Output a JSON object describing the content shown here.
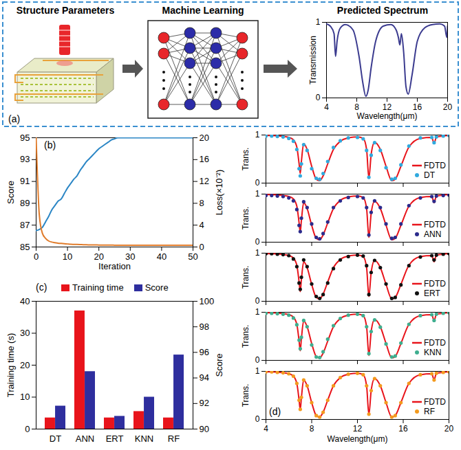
{
  "diagram": {
    "panel": "(a)",
    "steps": [
      "Structure Parameters",
      "Machine Learning"
    ]
  },
  "chart_data": [
    {
      "type": "line",
      "title": "Predicted Spectrum",
      "x_label": "Wavelength(μm)",
      "y_label": "Transmission",
      "x": [
        4,
        4.5,
        5,
        5.2,
        5.4,
        5.8,
        6.5,
        7.5,
        8.3,
        8.8,
        9.2,
        9.5,
        9.9,
        10.5,
        11.5,
        12.5,
        13.2,
        13.5,
        13.7,
        13.9,
        14.2,
        14.5,
        14.8,
        15.3,
        16,
        17,
        18,
        19,
        19.6,
        19.9,
        20
      ],
      "series": [
        {
          "color": "#3b3b8f",
          "values": [
            0.98,
            0.95,
            0.85,
            0.55,
            0.75,
            0.92,
            0.97,
            0.9,
            0.55,
            0.2,
            0.02,
            0.1,
            0.4,
            0.75,
            0.95,
            0.97,
            0.9,
            0.8,
            0.7,
            0.85,
            0.6,
            0.15,
            0.05,
            0.3,
            0.75,
            0.93,
            0.97,
            0.98,
            0.95,
            0.8,
            0.95
          ]
        }
      ],
      "xlim": [
        4,
        20
      ],
      "xticks": [
        4,
        8,
        12,
        16,
        20
      ],
      "ylim": [
        0,
        1
      ],
      "yticks": [
        0,
        1
      ]
    },
    {
      "type": "line",
      "panel": "(b)",
      "x_label": "Iteration",
      "y_label": "Score",
      "y2_label": "Loss(×10⁻²)",
      "x": [
        0,
        1,
        2,
        3,
        4,
        5,
        6,
        7,
        8,
        9,
        10,
        11,
        12,
        13,
        14,
        15,
        16,
        17,
        18,
        19,
        20,
        21,
        22,
        23,
        24,
        25,
        26,
        27,
        28,
        29,
        30,
        35,
        40,
        45,
        50
      ],
      "xlim": [
        0,
        50
      ],
      "xticks": [
        0,
        10,
        20,
        30,
        40,
        50
      ],
      "ylim": [
        85,
        95
      ],
      "yticks": [
        85,
        87,
        89,
        91,
        93,
        95
      ],
      "y2lim": [
        0,
        20
      ],
      "y2ticks": [
        0,
        4,
        8,
        12,
        16,
        20
      ],
      "series": [
        {
          "color": "#2b86c5",
          "values": [
            86.5,
            86.6,
            86.8,
            87.3,
            87.8,
            88.4,
            88.8,
            89.2,
            89.4,
            89.9,
            90.4,
            90.8,
            91.2,
            91.5,
            92.0,
            92.4,
            92.8,
            93.1,
            93.4,
            93.7,
            94.0,
            94.2,
            94.4,
            94.6,
            94.8,
            94.9,
            95,
            95,
            95,
            95,
            95,
            95,
            95,
            95,
            95
          ]
        },
        {
          "color": "#e07b2a",
          "axis": "y2",
          "values": [
            20,
            6,
            2.5,
            1.6,
            1.1,
            0.9,
            0.8,
            0.7,
            0.65,
            0.6,
            0.55,
            0.5,
            0.48,
            0.46,
            0.44,
            0.42,
            0.4,
            0.39,
            0.38,
            0.37,
            0.36,
            0.35,
            0.35,
            0.34,
            0.34,
            0.33,
            0.33,
            0.32,
            0.32,
            0.32,
            0.31,
            0.3,
            0.3,
            0.3,
            0.3
          ]
        }
      ]
    },
    {
      "type": "bar",
      "panel": "(c)",
      "categories": [
        "DT",
        "ANN",
        "ERT",
        "KNN",
        "RF"
      ],
      "y_label": "Training time (s)",
      "y2_label": "Score",
      "ylim": [
        0,
        40
      ],
      "yticks": [
        0,
        10,
        20,
        30,
        40
      ],
      "y2lim": [
        90,
        100
      ],
      "y2ticks": [
        90,
        92,
        94,
        96,
        98,
        100
      ],
      "legend": "top",
      "series": [
        {
          "name": "Training time",
          "color": "#e8141b",
          "values": [
            3.5,
            37,
            3.5,
            5.5,
            3.5
          ]
        },
        {
          "name": "Score",
          "color": "#2e2e9e",
          "axis": "y2",
          "values": [
            91.8,
            94.5,
            91,
            92.5,
            95.8
          ]
        }
      ]
    },
    {
      "type": "line",
      "y_label": "Trans.",
      "tick_labels": "y",
      "legend": "lower right",
      "x": [
        4,
        4.5,
        5,
        5.5,
        6,
        6.4,
        6.7,
        6.9,
        7.0,
        7.1,
        7.3,
        7.6,
        8.0,
        8.4,
        8.7,
        9.0,
        9.4,
        9.9,
        10.5,
        11.2,
        12.0,
        12.5,
        12.8,
        13.0,
        13.2,
        13.5,
        14.0,
        14.5,
        15.0,
        15.3,
        15.8,
        16.5,
        17.5,
        18.5,
        18.7,
        18.9,
        19.5,
        20
      ],
      "xlim": [
        4,
        20
      ],
      "xticks": [
        4,
        8,
        12,
        16,
        20
      ],
      "ylim": [
        0,
        1
      ],
      "yticks": [
        0,
        1
      ],
      "series": [
        {
          "name": "FDTD",
          "type": "line",
          "color": "#e8141b",
          "values": [
            0.99,
            0.99,
            0.98,
            0.97,
            0.95,
            0.9,
            0.75,
            0.4,
            0.2,
            0.45,
            0.82,
            0.7,
            0.35,
            0.08,
            0.05,
            0.15,
            0.4,
            0.7,
            0.87,
            0.94,
            0.96,
            0.93,
            0.7,
            0.1,
            0.6,
            0.85,
            0.7,
            0.35,
            0.05,
            0.08,
            0.35,
            0.75,
            0.93,
            0.95,
            0.82,
            0.96,
            0.98,
            0.99
          ]
        },
        {
          "name": "DT",
          "type": "scatter",
          "marker": "circle",
          "color": "#30a9de",
          "values": [
            0.98,
            0.98,
            0.97,
            0.96,
            0.93,
            0.87,
            0.7,
            0.3,
            0.15,
            0.4,
            0.8,
            0.68,
            0.3,
            0.1,
            0.08,
            0.2,
            0.45,
            0.74,
            0.88,
            0.94,
            0.95,
            0.92,
            0.68,
            0.12,
            0.58,
            0.84,
            0.68,
            0.32,
            0.08,
            0.1,
            0.38,
            0.77,
            0.94,
            0.95,
            0.84,
            0.96,
            0.98,
            0.99
          ]
        }
      ]
    },
    {
      "type": "line",
      "y_label": "Trans.",
      "tick_labels": "y",
      "legend": "lower right",
      "x": [
        4,
        4.5,
        5,
        5.5,
        6,
        6.4,
        6.7,
        6.9,
        7.0,
        7.1,
        7.3,
        7.6,
        8.0,
        8.4,
        8.7,
        9.0,
        9.4,
        9.9,
        10.5,
        11.2,
        12.0,
        12.5,
        12.8,
        13.0,
        13.2,
        13.5,
        14.0,
        14.5,
        15.0,
        15.3,
        15.8,
        16.5,
        17.5,
        18.5,
        18.7,
        18.9,
        19.5,
        20
      ],
      "xlim": [
        4,
        20
      ],
      "xticks": [
        4,
        8,
        12,
        16,
        20
      ],
      "ylim": [
        0,
        1
      ],
      "yticks": [
        0,
        1
      ],
      "series": [
        {
          "name": "FDTD",
          "type": "line",
          "color": "#e8141b",
          "values": [
            0.99,
            0.99,
            0.98,
            0.97,
            0.95,
            0.9,
            0.75,
            0.4,
            0.2,
            0.45,
            0.82,
            0.7,
            0.35,
            0.08,
            0.05,
            0.15,
            0.4,
            0.7,
            0.87,
            0.94,
            0.96,
            0.93,
            0.7,
            0.1,
            0.6,
            0.85,
            0.7,
            0.35,
            0.05,
            0.08,
            0.35,
            0.75,
            0.93,
            0.95,
            0.82,
            0.96,
            0.98,
            0.99
          ]
        },
        {
          "name": "ANN",
          "type": "scatter",
          "marker": "circle",
          "color": "#2b2b8c",
          "values": [
            0.97,
            0.97,
            0.96,
            0.95,
            0.92,
            0.86,
            0.68,
            0.35,
            0.22,
            0.5,
            0.84,
            0.72,
            0.38,
            0.1,
            0.07,
            0.18,
            0.42,
            0.72,
            0.86,
            0.93,
            0.95,
            0.92,
            0.72,
            0.15,
            0.62,
            0.86,
            0.72,
            0.38,
            0.08,
            0.1,
            0.38,
            0.76,
            0.92,
            0.95,
            0.85,
            0.96,
            0.97,
            0.98
          ]
        }
      ]
    },
    {
      "type": "line",
      "y_label": "Trans.",
      "tick_labels": "y",
      "legend": "lower right",
      "x": [
        4,
        4.5,
        5,
        5.5,
        6,
        6.4,
        6.7,
        6.9,
        7.0,
        7.1,
        7.3,
        7.6,
        8.0,
        8.4,
        8.7,
        9.0,
        9.4,
        9.9,
        10.5,
        11.2,
        12.0,
        12.5,
        12.8,
        13.0,
        13.2,
        13.5,
        14.0,
        14.5,
        15.0,
        15.3,
        15.8,
        16.5,
        17.5,
        18.5,
        18.7,
        18.9,
        19.5,
        20
      ],
      "xlim": [
        4,
        20
      ],
      "xticks": [
        4,
        8,
        12,
        16,
        20
      ],
      "ylim": [
        0,
        1
      ],
      "yticks": [
        0,
        1
      ],
      "series": [
        {
          "name": "FDTD",
          "type": "line",
          "color": "#e8141b",
          "values": [
            0.99,
            0.99,
            0.98,
            0.97,
            0.95,
            0.9,
            0.75,
            0.4,
            0.2,
            0.45,
            0.82,
            0.7,
            0.35,
            0.08,
            0.05,
            0.15,
            0.4,
            0.7,
            0.87,
            0.94,
            0.96,
            0.93,
            0.7,
            0.1,
            0.6,
            0.85,
            0.7,
            0.35,
            0.05,
            0.08,
            0.35,
            0.75,
            0.93,
            0.95,
            0.82,
            0.96,
            0.98,
            0.99
          ]
        },
        {
          "name": "ERT",
          "type": "scatter",
          "marker": "circle",
          "color": "#111111",
          "values": [
            0.99,
            0.99,
            0.98,
            0.97,
            0.95,
            0.88,
            0.72,
            0.38,
            0.25,
            0.5,
            0.86,
            0.72,
            0.36,
            0.1,
            0.06,
            0.14,
            0.38,
            0.68,
            0.86,
            0.93,
            0.96,
            0.94,
            0.74,
            0.14,
            0.6,
            0.85,
            0.7,
            0.36,
            0.06,
            0.08,
            0.34,
            0.74,
            0.92,
            0.95,
            0.86,
            0.96,
            0.98,
            0.99
          ]
        }
      ]
    },
    {
      "type": "line",
      "y_label": "Trans.",
      "tick_labels": "y",
      "legend": "lower right",
      "x": [
        4,
        4.5,
        5,
        5.5,
        6,
        6.4,
        6.7,
        6.9,
        7.0,
        7.1,
        7.3,
        7.6,
        8.0,
        8.4,
        8.7,
        9.0,
        9.4,
        9.9,
        10.5,
        11.2,
        12.0,
        12.5,
        12.8,
        13.0,
        13.2,
        13.5,
        14.0,
        14.5,
        15.0,
        15.3,
        15.8,
        16.5,
        17.5,
        18.5,
        18.7,
        18.9,
        19.5,
        20
      ],
      "xlim": [
        4,
        20
      ],
      "xticks": [
        4,
        8,
        12,
        16,
        20
      ],
      "ylim": [
        0,
        1
      ],
      "yticks": [
        0,
        1
      ],
      "series": [
        {
          "name": "FDTD",
          "type": "line",
          "color": "#e8141b",
          "values": [
            0.99,
            0.99,
            0.98,
            0.97,
            0.95,
            0.9,
            0.75,
            0.4,
            0.2,
            0.45,
            0.82,
            0.7,
            0.35,
            0.08,
            0.05,
            0.15,
            0.4,
            0.7,
            0.87,
            0.94,
            0.96,
            0.93,
            0.7,
            0.1,
            0.6,
            0.85,
            0.7,
            0.35,
            0.05,
            0.08,
            0.35,
            0.75,
            0.93,
            0.95,
            0.82,
            0.96,
            0.98,
            0.99
          ]
        },
        {
          "name": "KNN",
          "type": "scatter",
          "marker": "circle",
          "color": "#3fae8f",
          "values": [
            0.98,
            0.98,
            0.97,
            0.96,
            0.94,
            0.88,
            0.74,
            0.42,
            0.24,
            0.48,
            0.83,
            0.7,
            0.32,
            0.07,
            0.06,
            0.18,
            0.44,
            0.72,
            0.87,
            0.94,
            0.96,
            0.93,
            0.7,
            0.14,
            0.6,
            0.84,
            0.69,
            0.34,
            0.07,
            0.09,
            0.36,
            0.75,
            0.93,
            0.95,
            0.83,
            0.96,
            0.98,
            0.99
          ]
        }
      ]
    },
    {
      "type": "line",
      "panel": "(d)",
      "x_label": "Wavelength(μm)",
      "y_label": "Trans.",
      "legend": "lower right",
      "x": [
        4,
        4.5,
        5,
        5.5,
        6,
        6.4,
        6.7,
        6.9,
        7.0,
        7.1,
        7.3,
        7.6,
        8.0,
        8.4,
        8.7,
        9.0,
        9.4,
        9.9,
        10.5,
        11.2,
        12.0,
        12.5,
        12.8,
        13.0,
        13.2,
        13.5,
        14.0,
        14.5,
        15.0,
        15.3,
        15.8,
        16.5,
        17.5,
        18.5,
        18.7,
        18.9,
        19.5,
        20
      ],
      "xlim": [
        4,
        20
      ],
      "xticks": [
        4,
        8,
        12,
        16,
        20
      ],
      "ylim": [
        0,
        1
      ],
      "yticks": [
        0,
        1
      ],
      "series": [
        {
          "name": "FDTD",
          "type": "line",
          "color": "#e8141b",
          "values": [
            0.99,
            0.99,
            0.98,
            0.97,
            0.95,
            0.9,
            0.75,
            0.4,
            0.2,
            0.45,
            0.82,
            0.7,
            0.35,
            0.08,
            0.05,
            0.15,
            0.4,
            0.7,
            0.87,
            0.94,
            0.96,
            0.93,
            0.7,
            0.1,
            0.6,
            0.85,
            0.7,
            0.35,
            0.05,
            0.08,
            0.35,
            0.75,
            0.93,
            0.95,
            0.82,
            0.96,
            0.98,
            0.99
          ]
        },
        {
          "name": "RF",
          "type": "scatter",
          "marker": "circle",
          "color": "#f39a1e",
          "values": [
            0.99,
            0.99,
            0.98,
            0.97,
            0.95,
            0.9,
            0.75,
            0.4,
            0.21,
            0.46,
            0.82,
            0.7,
            0.35,
            0.08,
            0.05,
            0.15,
            0.4,
            0.7,
            0.87,
            0.94,
            0.96,
            0.93,
            0.7,
            0.11,
            0.6,
            0.85,
            0.7,
            0.35,
            0.05,
            0.08,
            0.35,
            0.75,
            0.93,
            0.95,
            0.82,
            0.96,
            0.98,
            0.99
          ]
        }
      ]
    }
  ]
}
